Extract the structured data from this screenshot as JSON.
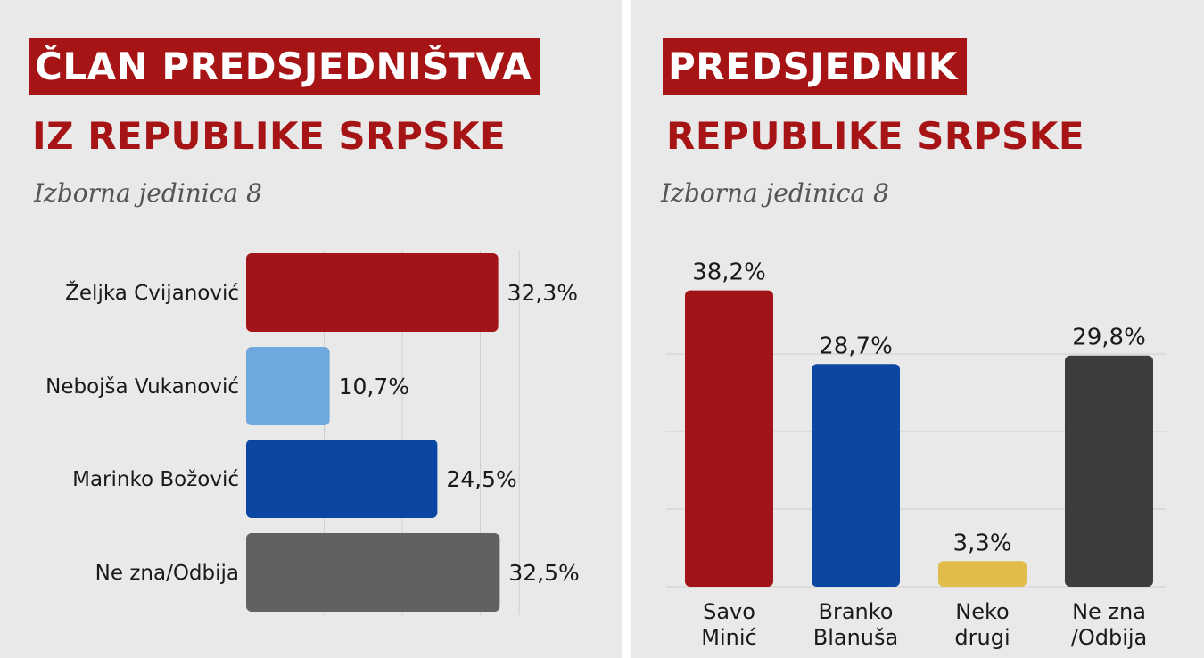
{
  "left": {
    "title_line1": "ČLAN PREDSJEDNIŠTVA",
    "title_line2": "IZ REPUBLIKE SRPSKE",
    "subtitle": "Izborna jedinica 8"
  },
  "right": {
    "title_line1": "PREDSJEDNIK",
    "title_line2": "REPUBLIKE SRPSKE",
    "subtitle": "Izborna jedinica 8"
  },
  "colors": {
    "title_red": "#a61416",
    "panel_bg": "#e9e9e9"
  },
  "chart_data": [
    {
      "type": "bar",
      "orientation": "horizontal",
      "title": "ČLAN PREDSJEDNIŠTVA IZ REPUBLIKE SRPSKE",
      "subtitle": "Izborna jedinica 8",
      "categories": [
        "Željka Cvijanović",
        "Nebojša Vukanović",
        "Marinko Božović",
        "Ne zna/Odbija"
      ],
      "values": [
        32.3,
        10.7,
        24.5,
        32.5
      ],
      "labels": [
        "32,3%",
        "10,7%",
        "24,5%",
        "32,5%"
      ],
      "colors": [
        "#a31418",
        "#6fa8dc",
        "#0b46a3",
        "#616161"
      ],
      "xlim": [
        0,
        35
      ],
      "grid": true
    },
    {
      "type": "bar",
      "orientation": "vertical",
      "title": "PREDSJEDNIK REPUBLIKE SRPSKE",
      "subtitle": "Izborna jedinica 8",
      "categories": [
        [
          "Savo",
          "Minić"
        ],
        [
          "Branko",
          "Blanuša"
        ],
        [
          "Neko",
          "drugi"
        ],
        [
          "Ne zna",
          "/Odbija"
        ]
      ],
      "values": [
        38.2,
        28.7,
        3.3,
        29.8
      ],
      "labels": [
        "38,2%",
        "28,7%",
        "3,3%",
        "29,8%"
      ],
      "colors": [
        "#a31418",
        "#0b46a3",
        "#e0bd4a",
        "#3d3d3d"
      ],
      "ylim": [
        0,
        40
      ],
      "grid": true
    }
  ]
}
